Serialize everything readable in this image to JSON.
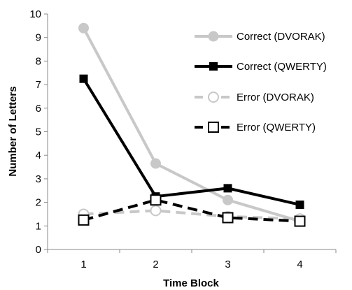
{
  "chart_data": {
    "type": "line",
    "categories": [
      "1",
      "2",
      "3",
      "4"
    ],
    "xlabel": "Time Block",
    "ylabel": "Number of Letters",
    "ylim": [
      0,
      10
    ],
    "yticks": [
      "0",
      "1",
      "2",
      "3",
      "4",
      "5",
      "6",
      "7",
      "8",
      "9",
      "10"
    ],
    "grid": false,
    "legend": "top-right",
    "series": [
      {
        "name": "Correct (DVORAK)",
        "values": [
          9.4,
          3.65,
          2.1,
          1.2
        ],
        "color": "#c8c8c8",
        "dash": false,
        "marker": "circle",
        "filled": true
      },
      {
        "name": "Correct (QWERTY)",
        "values": [
          7.25,
          2.25,
          2.6,
          1.9
        ],
        "color": "#000000",
        "dash": false,
        "marker": "square",
        "filled": true
      },
      {
        "name": "Error (DVORAK)",
        "values": [
          1.5,
          1.65,
          1.4,
          1.3
        ],
        "color": "#c8c8c8",
        "dash": true,
        "marker": "circle",
        "filled": false
      },
      {
        "name": "Error (QWERTY)",
        "values": [
          1.25,
          2.1,
          1.35,
          1.2
        ],
        "color": "#000000",
        "dash": true,
        "marker": "square",
        "filled": false
      }
    ]
  }
}
